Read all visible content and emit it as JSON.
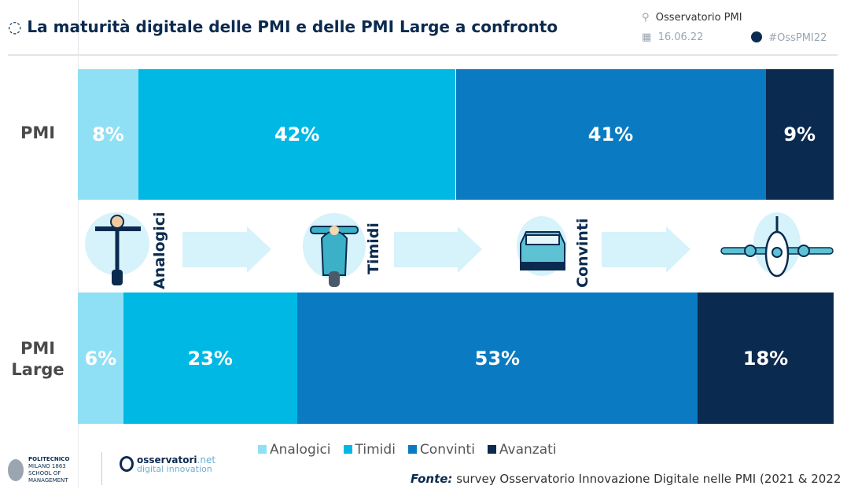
{
  "header": {
    "title": "La maturità digitale delle PMI e delle PMI Large a confronto",
    "org": "Osservatorio PMI",
    "date": "16.06.22",
    "hashtag": "#OssPMI22"
  },
  "chart_data": {
    "type": "bar",
    "orientation": "horizontal",
    "stacked": true,
    "unit": "%",
    "categories": [
      "PMI",
      "PMI Large"
    ],
    "series": [
      {
        "name": "Analogici",
        "color": "#8fe0f5",
        "values": [
          8,
          6
        ]
      },
      {
        "name": "Timidi",
        "color": "#00b8e4",
        "values": [
          42,
          23
        ]
      },
      {
        "name": "Convinti",
        "color": "#0a7bc2",
        "values": [
          41,
          53
        ]
      },
      {
        "name": "Avanzati",
        "color": "#0b2a4f",
        "values": [
          9,
          18
        ]
      }
    ],
    "row_labels": [
      "PMI",
      "PMI\nLarge"
    ],
    "stage_labels": [
      "Analogici",
      "Timidi",
      "Convinti"
    ],
    "legend_position": "bottom"
  },
  "footer": {
    "source_label": "Fonte:",
    "source_text": " survey Osservatorio Innovazione Digitale nelle PMI (2021 & 2022",
    "logo1": "POLITECNICO MILANO 1863 SCHOOL OF MANAGEMENT",
    "logo2_a": "osservatori",
    "logo2_b": ".net",
    "logo2_c": "digital innovation"
  }
}
